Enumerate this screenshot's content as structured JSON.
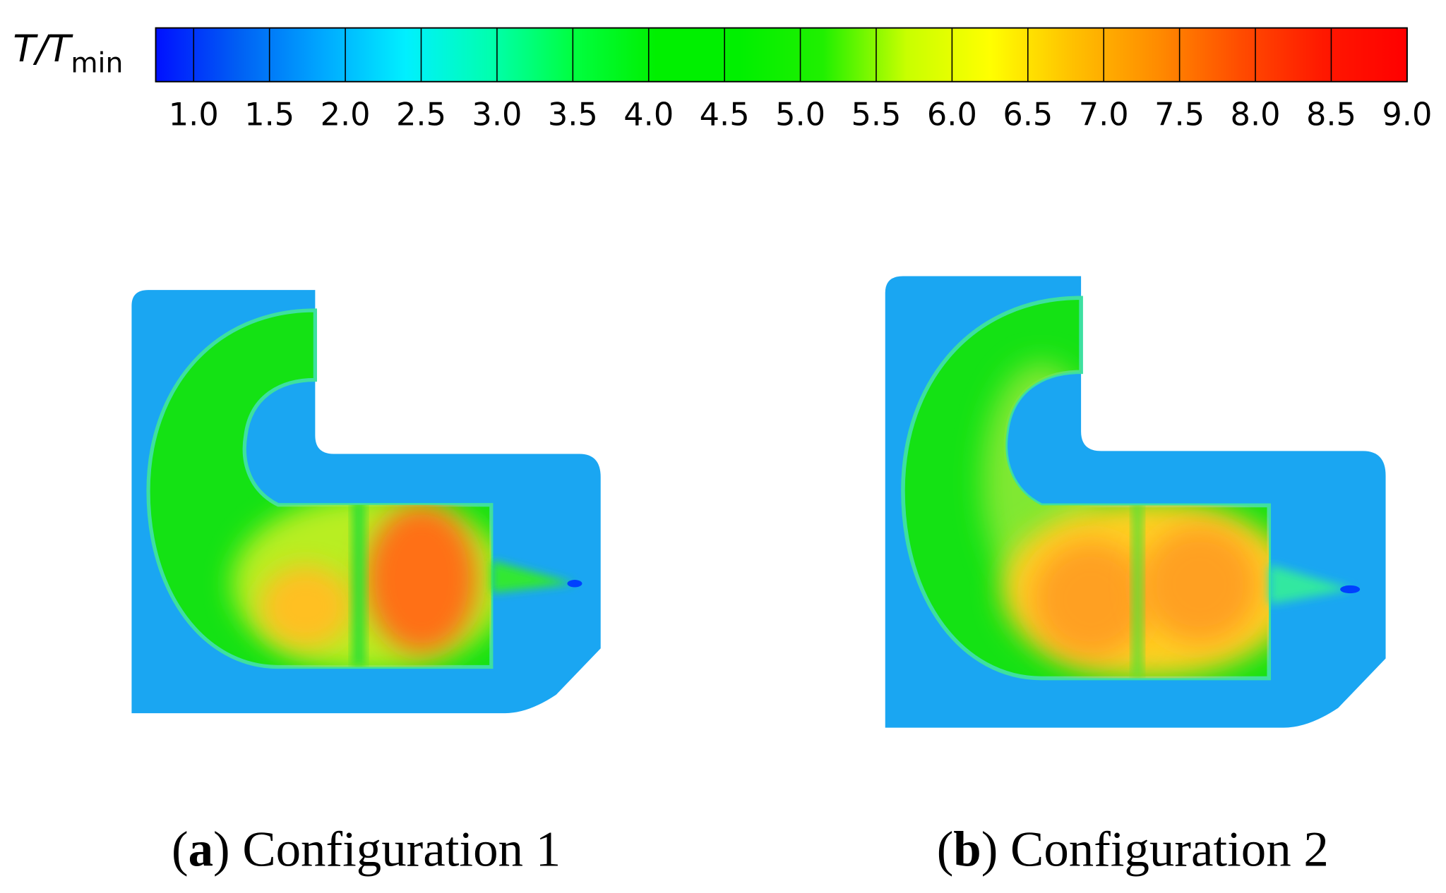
{
  "colorbar": {
    "label": "T/T",
    "label_sub": "min",
    "lim": [
      0.75,
      9
    ],
    "ticks": [
      {
        "value": 1,
        "label": "1.0"
      },
      {
        "value": 1.5,
        "label": "1.5"
      },
      {
        "value": 2,
        "label": "2.0"
      },
      {
        "value": 2.5,
        "label": "2.5"
      },
      {
        "value": 3,
        "label": "3.0"
      },
      {
        "value": 3.5,
        "label": "3.5"
      },
      {
        "value": 4,
        "label": "4.0"
      },
      {
        "value": 4.5,
        "label": "4.5"
      },
      {
        "value": 5,
        "label": "5.0"
      },
      {
        "value": 5.5,
        "label": "5.5"
      },
      {
        "value": 6,
        "label": "6.0"
      },
      {
        "value": 6.5,
        "label": "6.5"
      },
      {
        "value": 7,
        "label": "7.0"
      },
      {
        "value": 7.5,
        "label": "7.5"
      },
      {
        "value": 8,
        "label": "8.0"
      },
      {
        "value": 8.5,
        "label": "8.5"
      },
      {
        "value": 9,
        "label": "9.0"
      }
    ],
    "colors": [
      "#0010ff",
      "#0060f4",
      "#00a8ff",
      "#00f0ff",
      "#00ffb0",
      "#00ff40",
      "#00f000",
      "#00f000",
      "#20f000",
      "#c8ff00",
      "#ffff00",
      "#ffc000",
      "#ff8c00",
      "#ff4c00",
      "#ff1800",
      "#ff0000"
    ]
  },
  "panels": [
    {
      "caption_parts": [
        "(",
        "a",
        ") Configuration 1"
      ]
    },
    {
      "caption_parts": [
        "(",
        "b",
        ") Configuration 2"
      ]
    }
  ]
}
